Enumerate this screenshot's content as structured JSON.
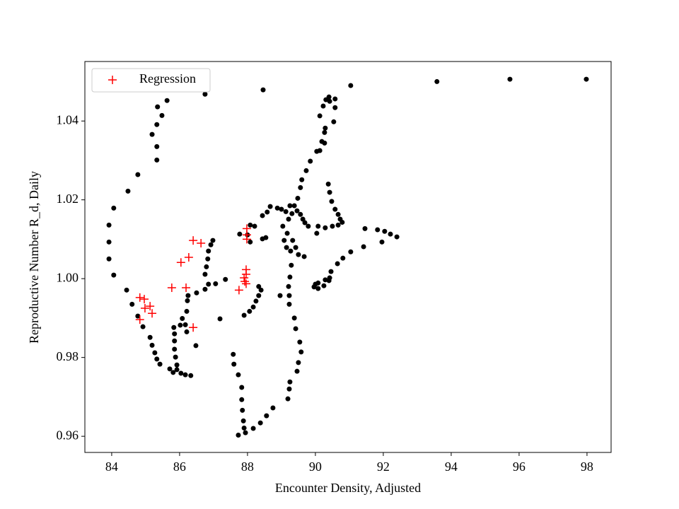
{
  "chart_data": {
    "type": "scatter",
    "xlabel": "Encounter Density, Adjusted",
    "ylabel": "Reproductive Number R_d, Daily",
    "xlim": [
      83.21,
      98.71
    ],
    "ylim": [
      0.9559,
      1.0551
    ],
    "xticks": [
      84,
      86,
      88,
      90,
      92,
      94,
      96,
      98
    ],
    "yticks": [
      0.96,
      0.98,
      {
        "value": 1,
        "label": "1.00"
      },
      1.02,
      1.04
    ],
    "legend": "upper left",
    "series": [
      {
        "color": "#000000",
        "marker": "circle",
        "x": [
          85.63,
          85.48,
          85.35,
          85.33,
          85.33,
          85.33,
          85.19,
          84.77,
          84.48,
          84.06,
          83.92,
          83.92,
          83.92,
          84.06,
          84.44,
          84.6,
          84.77,
          84.92,
          85.13,
          85.19,
          85.27,
          85.33,
          85.42,
          85.71,
          85.81,
          85.92,
          86.04,
          86.17,
          86.33,
          85.83,
          85.85,
          85.85,
          85.85,
          85.88,
          85.92,
          86.02,
          86.08,
          86.17,
          86.21,
          86.21,
          86.23,
          86.25,
          86.5,
          86.48,
          86.75,
          86.85,
          86.75,
          86.79,
          86.83,
          86.85,
          86.92,
          86.98,
          87.06,
          86.75,
          87.19,
          87.35,
          87.58,
          87.6,
          87.73,
          87.83,
          87.83,
          87.85,
          87.88,
          87.9,
          87.73,
          87.94,
          88.17,
          88.38,
          88.56,
          88.75,
          87.77,
          87.9,
          88.06,
          88.17,
          88.25,
          88.33,
          88.4,
          88.33,
          88.0,
          88.08,
          88.08,
          88.21,
          88.44,
          88.44,
          88.54,
          88.58,
          88.67,
          88.88,
          89.0,
          89.13,
          88.46,
          89.04,
          89.08,
          89.15,
          89.17,
          89.21,
          89.25,
          89.31,
          89.27,
          89.29,
          89.25,
          89.21,
          89.23,
          89.23,
          88.96,
          89.38,
          89.46,
          89.56,
          89.63,
          89.69,
          89.79,
          89.33,
          89.42,
          89.5,
          89.67,
          89.38,
          89.42,
          89.54,
          89.58,
          89.5,
          89.46,
          89.25,
          89.23,
          89.19,
          89.48,
          89.56,
          89.6,
          89.73,
          89.85,
          90.04,
          90.13,
          90.23,
          90.31,
          90.4,
          90.42,
          90.58,
          90.58,
          90.54,
          90.29,
          90.27,
          90.19,
          90.27,
          90.13,
          90.38,
          90.42,
          90.48,
          90.58,
          90.67,
          90.73,
          90.79,
          90.67,
          90.5,
          90.29,
          90.04,
          90.08,
          91.04,
          90.81,
          90.65,
          90.46,
          90.42,
          90.29,
          90.08,
          90.0,
          89.96,
          90.08,
          90.25,
          90.4,
          91.04,
          91.42,
          91.46,
          91.83,
          92.04,
          92.21,
          92.4,
          91.96,
          93.58,
          95.73,
          97.98
        ],
        "values": [
          1.0452,
          1.0414,
          1.0436,
          1.0391,
          1.0335,
          1.0301,
          1.0366,
          1.0264,
          1.0222,
          1.0179,
          1.0136,
          1.0093,
          1.005,
          1.0009,
          0.9971,
          0.9935,
          0.9905,
          0.9878,
          0.9851,
          0.9831,
          0.9812,
          0.9796,
          0.9783,
          0.9771,
          0.9762,
          0.9769,
          0.976,
          0.9756,
          0.9754,
          0.9876,
          0.986,
          0.9842,
          0.9821,
          0.9801,
          0.9781,
          0.9882,
          0.9899,
          0.9883,
          0.9865,
          0.9917,
          0.9944,
          0.9957,
          0.9964,
          0.983,
          0.9973,
          0.9986,
          1.0011,
          1.003,
          1.005,
          1.007,
          1.0086,
          1.0097,
          0.9987,
          1.0468,
          0.9898,
          0.9998,
          0.9808,
          0.9783,
          0.9756,
          0.9724,
          0.9693,
          0.9666,
          0.9639,
          0.9621,
          0.9603,
          0.9609,
          0.962,
          0.9634,
          0.9652,
          0.9672,
          1.0113,
          0.9907,
          0.9917,
          0.9928,
          0.9943,
          0.9957,
          0.9971,
          0.998,
          1.0111,
          1.0136,
          1.0093,
          1.0133,
          1.016,
          1.0101,
          1.0104,
          1.0169,
          1.0183,
          1.0179,
          1.0176,
          1.017,
          1.0479,
          1.0133,
          1.0097,
          1.0079,
          1.0115,
          1.0151,
          1.0185,
          1.0165,
          1.007,
          1.0034,
          1.0004,
          0.998,
          0.9957,
          0.9935,
          0.9957,
          1.0185,
          1.0172,
          1.0163,
          1.0151,
          1.0142,
          1.0133,
          1.0097,
          1.0079,
          1.0061,
          1.0056,
          0.99,
          0.9873,
          0.9839,
          0.9814,
          0.9787,
          0.9765,
          0.9738,
          0.972,
          0.9695,
          1.0204,
          1.0231,
          1.0251,
          1.0274,
          1.0298,
          1.0323,
          1.0413,
          1.0438,
          1.0454,
          1.0461,
          1.045,
          1.0434,
          1.0456,
          1.0398,
          1.0382,
          1.0371,
          1.0348,
          1.0344,
          1.0325,
          1.024,
          1.0219,
          1.0196,
          1.0176,
          1.0163,
          1.0151,
          1.0143,
          1.0136,
          1.0133,
          1.0129,
          1.0115,
          1.0133,
          1.049,
          1.0052,
          1.0038,
          1.0018,
          1.0002,
          0.9997,
          0.9989,
          0.9986,
          0.9979,
          0.9975,
          0.9982,
          0.9995,
          1.0068,
          1.0081,
          1.0127,
          1.0124,
          1.012,
          1.0113,
          1.0106,
          1.0093,
          1.05,
          1.0506,
          1.0506
        ]
      },
      {
        "name": "Regression",
        "color": "#ff0000",
        "marker": "plus",
        "x": [
          84.83,
          84.96,
          84.83,
          84.98,
          85.13,
          85.19,
          85.77,
          86.19,
          86.04,
          86.27,
          86.4,
          86.63,
          86.4,
          87.75,
          87.98,
          87.98,
          87.98,
          87.96,
          87.96,
          87.9,
          87.96,
          87.92
        ],
        "values": [
          0.9952,
          0.9948,
          0.9896,
          0.9925,
          0.993,
          0.9912,
          0.9977,
          0.9977,
          1.0041,
          1.0054,
          1.0097,
          1.009,
          0.9876,
          0.9971,
          1.0127,
          1.0111,
          1.01,
          1.0023,
          1.0011,
          1.0002,
          0.9987,
          0.9993
        ]
      }
    ]
  }
}
